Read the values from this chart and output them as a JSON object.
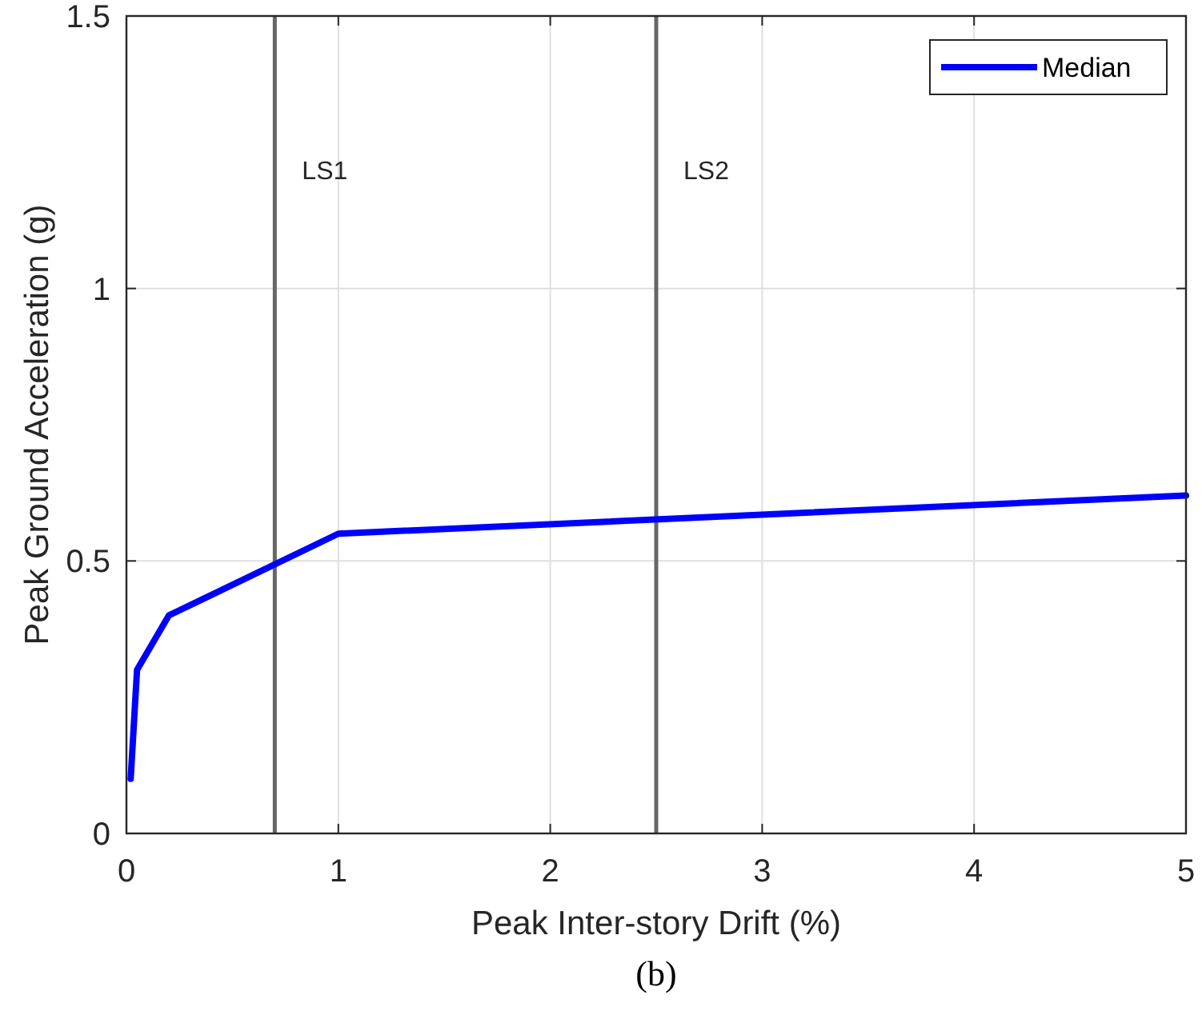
{
  "chart_data": {
    "type": "line",
    "xlabel": "Peak Inter-story Drift (%)",
    "ylabel": "Peak Ground Acceleration (g)",
    "x": [
      0.02,
      0.05,
      0.2,
      1,
      5
    ],
    "series": [
      {
        "name": "Median",
        "color": "#0000ff",
        "values": [
          0.1,
          0.3,
          0.4,
          0.55,
          0.62
        ]
      }
    ],
    "xlim": [
      0,
      5
    ],
    "xticks": [
      0,
      1,
      2,
      3,
      4,
      5
    ],
    "ylim": [
      0,
      1.5
    ],
    "yticks": [
      0,
      0.5,
      1,
      1.5
    ],
    "ref_lines": [
      {
        "axis": "x",
        "value": 0.7,
        "label": "LS1",
        "color": "#666666"
      },
      {
        "axis": "x",
        "value": 2.5,
        "label": "LS2",
        "color": "#666666"
      }
    ],
    "annotations": [
      "(b)"
    ],
    "grid": true,
    "legend": "top right",
    "line_style": "solid",
    "marker": "none"
  }
}
